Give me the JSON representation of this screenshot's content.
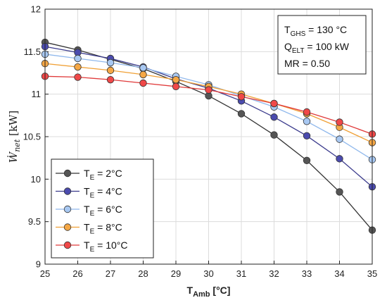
{
  "chart_data": {
    "type": "line",
    "x": [
      25,
      26,
      27,
      28,
      29,
      30,
      31,
      32,
      33,
      34,
      35
    ],
    "xlim": [
      25,
      35
    ],
    "ylim": [
      9,
      12
    ],
    "xticks": [
      "25",
      "26",
      "27",
      "28",
      "29",
      "30",
      "31",
      "32",
      "33",
      "34",
      "35"
    ],
    "yticks": [
      "9",
      "9.5",
      "10",
      "10.5",
      "11",
      "11.5",
      "12"
    ],
    "xlabel": {
      "main": "T",
      "sub": "Amb",
      "unit": " [°C]"
    },
    "ylabel": {
      "symbol": "Ẇ",
      "sub": "net",
      "unit": " [kW]"
    },
    "grid": true,
    "annotation": [
      {
        "main": "T",
        "sub": "GHS",
        "rest": " = 130 °C"
      },
      {
        "main": "Q",
        "sub": "ELT",
        "rest": " = 100 kW"
      },
      {
        "main": "MR = 0.50",
        "sub": "",
        "rest": ""
      }
    ],
    "legend_position": "lower-left",
    "series": [
      {
        "name": "T_E = 2°C",
        "label_main": "T",
        "label_sub": "E",
        "label_rest": " = 2°C",
        "line_color": "#333333",
        "marker_color": "#555555",
        "values": [
          11.61,
          11.52,
          11.41,
          11.3,
          11.15,
          10.98,
          10.77,
          10.52,
          10.22,
          9.85,
          9.4
        ]
      },
      {
        "name": "T_E = 4°C",
        "label_main": "T",
        "label_sub": "E",
        "label_rest": " = 4°C",
        "line_color": "#3a3a8c",
        "marker_color": "#4b4bae",
        "values": [
          11.56,
          11.49,
          11.42,
          11.32,
          11.18,
          11.07,
          10.92,
          10.73,
          10.51,
          10.24,
          9.91
        ]
      },
      {
        "name": "T_E = 6°C",
        "label_main": "T",
        "label_sub": "E",
        "label_rest": " = 6°C",
        "line_color": "#8fb8ec",
        "marker_color": "#a8c8f2",
        "values": [
          11.47,
          11.42,
          11.37,
          11.31,
          11.21,
          11.11,
          10.98,
          10.85,
          10.68,
          10.47,
          10.23
        ]
      },
      {
        "name": "T_E = 8°C",
        "label_main": "T",
        "label_sub": "E",
        "label_rest": " = 8°C",
        "line_color": "#f0a035",
        "marker_color": "#f5a745",
        "values": [
          11.36,
          11.32,
          11.28,
          11.23,
          11.17,
          11.09,
          11.0,
          10.89,
          10.77,
          10.61,
          10.43
        ]
      },
      {
        "name": "T_E = 10°C",
        "label_main": "T",
        "label_sub": "E",
        "label_rest": " = 10°C",
        "line_color": "#e03a3a",
        "marker_color": "#f04848",
        "values": [
          11.21,
          11.2,
          11.17,
          11.13,
          11.09,
          11.05,
          10.97,
          10.89,
          10.79,
          10.67,
          10.53
        ]
      }
    ]
  }
}
